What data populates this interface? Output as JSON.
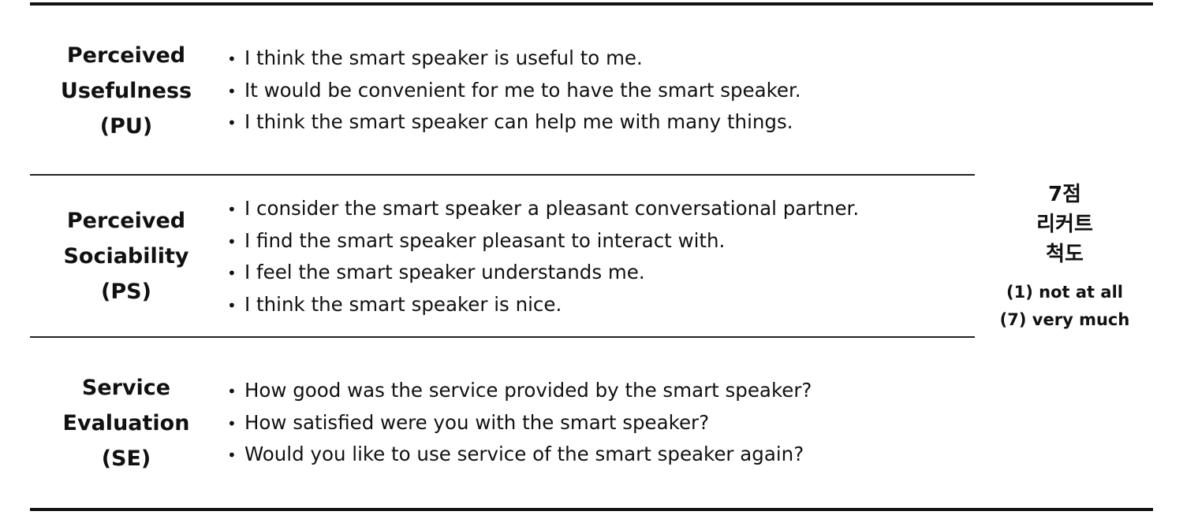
{
  "rows": [
    {
      "construct": {
        "line1": "Perceived",
        "line2": "Usefulness",
        "abbr": "(PU)"
      },
      "bullet": "•",
      "items": [
        "I think the smart speaker is useful to me.",
        "It would be convenient for me to have the smart speaker.",
        "I think the smart speaker can help me with many things."
      ]
    },
    {
      "construct": {
        "line1": "Perceived",
        "line2": "Sociability",
        "abbr": "(PS)"
      },
      "bullet": "•",
      "items": [
        "I consider the smart speaker a pleasant conversational partner.",
        "I find the smart speaker pleasant to interact with.",
        "I feel the smart speaker understands me.",
        "I think the smart speaker is nice."
      ]
    },
    {
      "construct": {
        "line1": "Service",
        "line2": "Evaluation",
        "abbr": "(SE)"
      },
      "bullet": "•",
      "items": [
        "How good was the service provided by the smart speaker?",
        "How satisfied were you with the smart speaker?",
        "Would you like to use service of the smart speaker again?"
      ]
    }
  ],
  "scale": {
    "title_lines": [
      "7점",
      "리커트",
      "척도"
    ],
    "anchor_low": "(1) not at all",
    "anchor_high": "(7) very much"
  }
}
